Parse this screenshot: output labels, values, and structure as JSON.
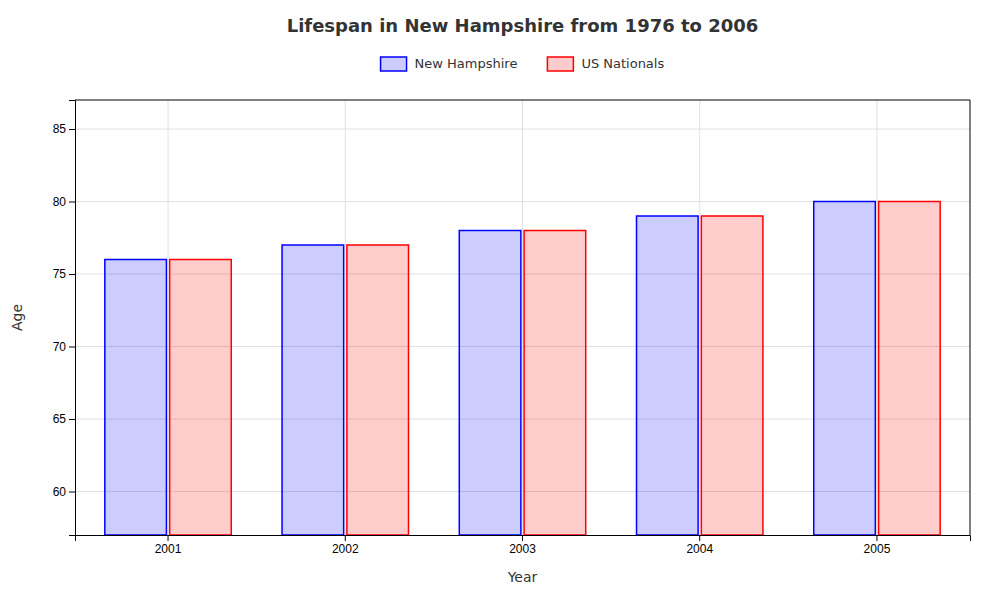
{
  "chart_data": {
    "type": "bar",
    "title": "Lifespan in New Hampshire from 1976 to 2006",
    "xlabel": "Year",
    "ylabel": "Age",
    "categories": [
      "2001",
      "2002",
      "2003",
      "2004",
      "2005"
    ],
    "series": [
      {
        "name": "New Hampshire",
        "color": "#0000ff",
        "values": [
          76,
          77,
          78,
          79,
          80
        ]
      },
      {
        "name": "US Nationals",
        "color": "#ff0000",
        "values": [
          76,
          77,
          78,
          79,
          80
        ]
      }
    ],
    "ylim": [
      57,
      87
    ],
    "yticks": [
      60,
      65,
      70,
      75,
      80,
      85
    ],
    "grid": true,
    "legend": "top"
  }
}
